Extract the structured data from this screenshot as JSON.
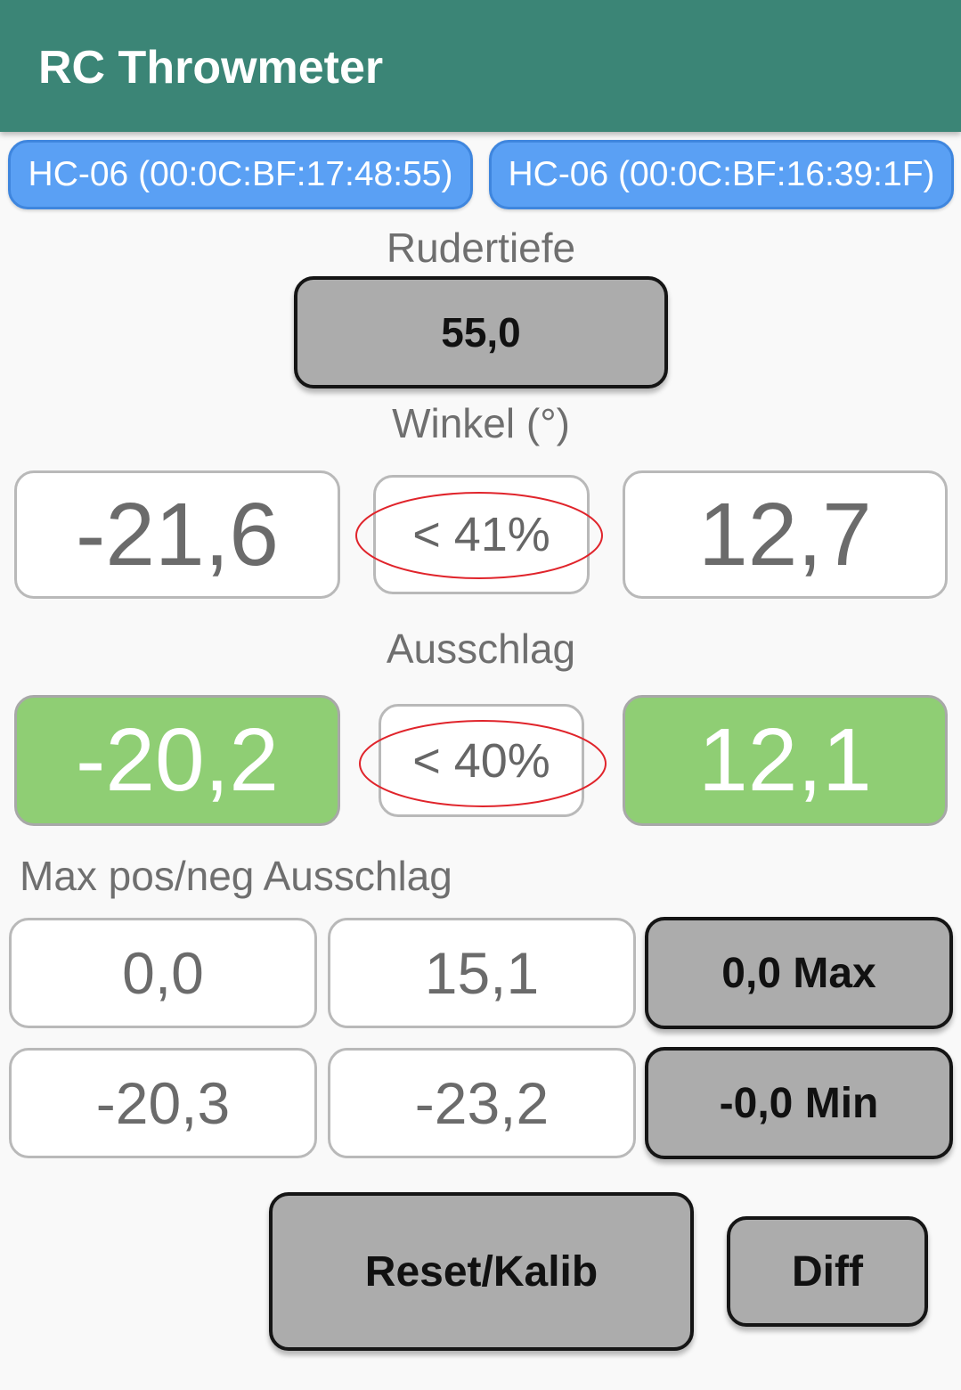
{
  "app": {
    "title": "RC Throwmeter"
  },
  "devices": [
    {
      "label": "HC-06 (00:0C:BF:17:48:55)"
    },
    {
      "label": "HC-06 (00:0C:BF:16:39:1F)"
    }
  ],
  "rudertiefe": {
    "label": "Rudertiefe",
    "value": "55,0"
  },
  "winkel": {
    "label": "Winkel (°)",
    "left": "-21,6",
    "ratio": "< 41%",
    "right": "12,7"
  },
  "ausschlag": {
    "label": "Ausschlag",
    "left": "-20,2",
    "ratio": "< 40%",
    "right": "12,1"
  },
  "max_section": {
    "label": "Max pos/neg Ausschlag",
    "row1": {
      "a": "0,0",
      "b": "15,1",
      "button": "0,0 Max"
    },
    "row2": {
      "a": "-20,3",
      "b": "-23,2",
      "button": "-0,0 Min"
    }
  },
  "actions": {
    "reset_label": "Reset/Kalib",
    "diff_label": "Diff"
  },
  "colors": {
    "appbar": "#3b8576",
    "device_button": "#5aa0f4",
    "green_value": "#8fce74",
    "annotation_ellipse": "#e0242b"
  }
}
